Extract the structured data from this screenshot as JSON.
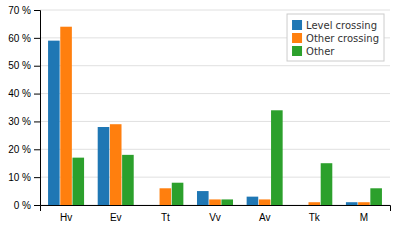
{
  "chart_data": {
    "type": "bar",
    "categories": [
      "Hv",
      "Ev",
      "Tt",
      "Vv",
      "Av",
      "Tk",
      "M"
    ],
    "series": [
      {
        "name": "Level crossing",
        "values": [
          59,
          28,
          0,
          5,
          3,
          0,
          1
        ]
      },
      {
        "name": "Other crossing",
        "values": [
          64,
          29,
          6,
          2,
          2,
          1,
          1
        ]
      },
      {
        "name": "Other",
        "values": [
          17,
          18,
          8,
          2,
          34,
          15,
          6
        ]
      }
    ],
    "ylim": [
      0,
      70
    ],
    "yticks": [
      {
        "value": 0,
        "label": "0 %"
      },
      {
        "value": 10,
        "label": "10 %"
      },
      {
        "value": 20,
        "label": "20 %"
      },
      {
        "value": 30,
        "label": "30 %"
      },
      {
        "value": 40,
        "label": "40 %"
      },
      {
        "value": 50,
        "label": "50 %"
      },
      {
        "value": 60,
        "label": "60 %"
      },
      {
        "value": 70,
        "label": "70 %"
      }
    ],
    "grid": true,
    "legend": "upper right"
  }
}
